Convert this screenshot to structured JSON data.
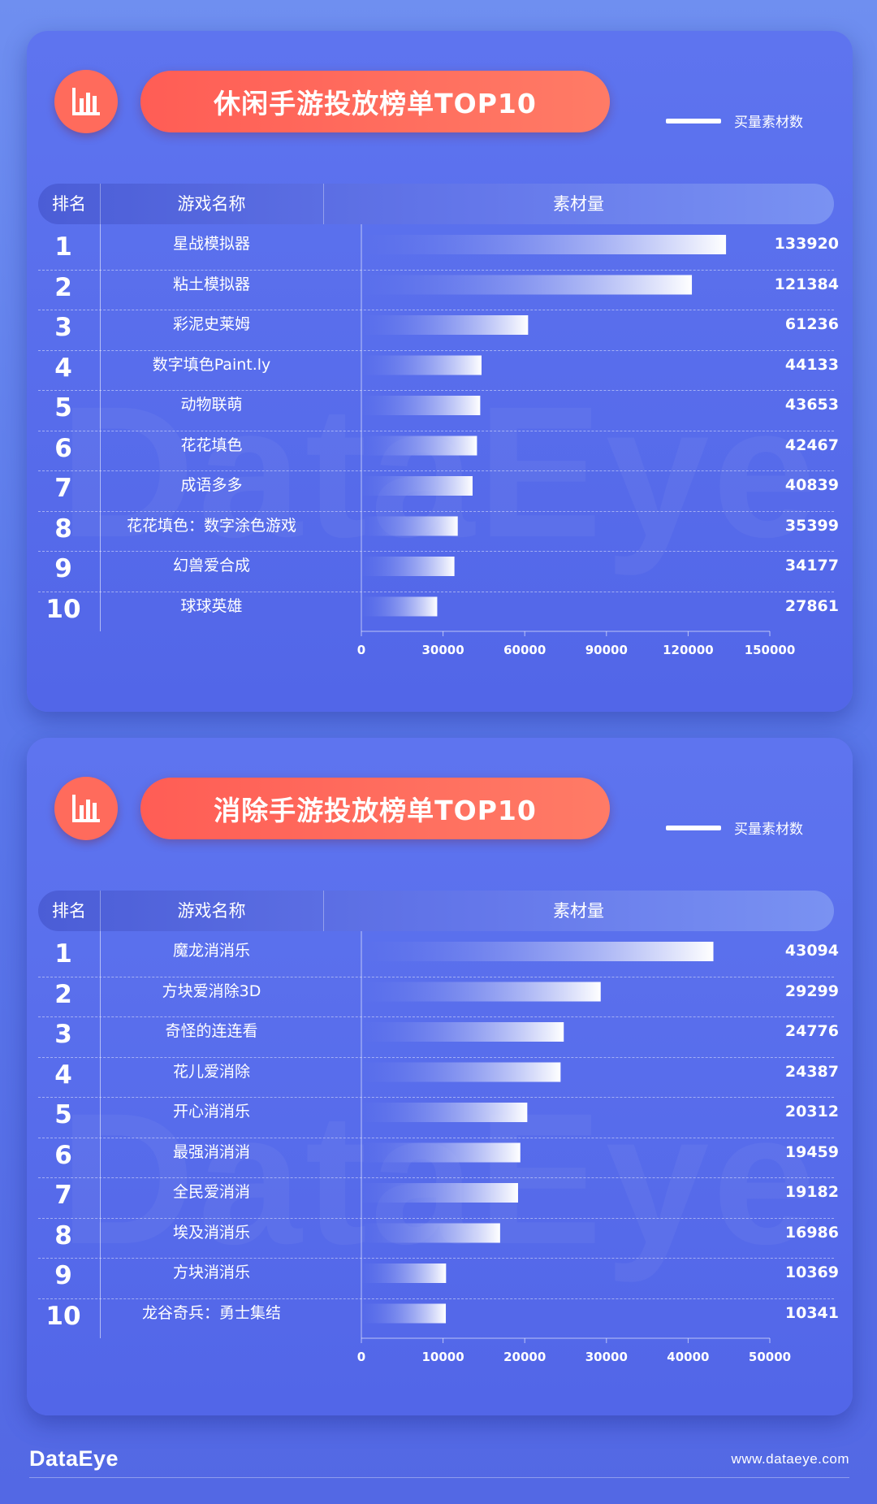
{
  "legend_label": "买量素材数",
  "table_headers": {
    "rank": "排名",
    "name": "游戏名称",
    "value": "素材量"
  },
  "colors": {
    "accent": "#ff6b5c",
    "panel": "#5a6fec",
    "bar_start": "#ffffff"
  },
  "icons": {
    "badge": "bar-chart-icon"
  },
  "chart_data": [
    {
      "type": "bar",
      "orientation": "horizontal",
      "title": "休闲手游投放榜单TOP10",
      "series_name": "买量素材数",
      "categories": [
        "星战模拟器",
        "粘土模拟器",
        "彩泥史莱姆",
        "数字填色Paint.ly",
        "动物联萌",
        "花花填色",
        "成语多多",
        "花花填色：数字涂色游戏",
        "幻兽爱合成",
        "球球英雄"
      ],
      "values": [
        133920,
        121384,
        61236,
        44133,
        43653,
        42467,
        40839,
        35399,
        34177,
        27861
      ],
      "ranks": [
        "1",
        "2",
        "3",
        "4",
        "5",
        "6",
        "7",
        "8",
        "9",
        "10"
      ],
      "xlim": [
        0,
        150000
      ],
      "ticks": [
        0,
        30000,
        60000,
        90000,
        120000,
        150000
      ]
    },
    {
      "type": "bar",
      "orientation": "horizontal",
      "title": "消除手游投放榜单TOP10",
      "series_name": "买量素材数",
      "categories": [
        "魔龙消消乐",
        "方块爱消除3D",
        "奇怪的连连看",
        "花儿爱消除",
        "开心消消乐",
        "最强消消消",
        "全民爱消消",
        "埃及消消乐",
        "方块消消乐",
        "龙谷奇兵：勇士集结"
      ],
      "values": [
        43094,
        29299,
        24776,
        24387,
        20312,
        19459,
        19182,
        16986,
        10369,
        10341
      ],
      "ranks": [
        "1",
        "2",
        "3",
        "4",
        "5",
        "6",
        "7",
        "8",
        "9",
        "10"
      ],
      "xlim": [
        0,
        50000
      ],
      "ticks": [
        0,
        10000,
        20000,
        30000,
        40000,
        50000
      ]
    }
  ],
  "footer": {
    "brand": "DataEye",
    "url": "www.dataeye.com"
  }
}
